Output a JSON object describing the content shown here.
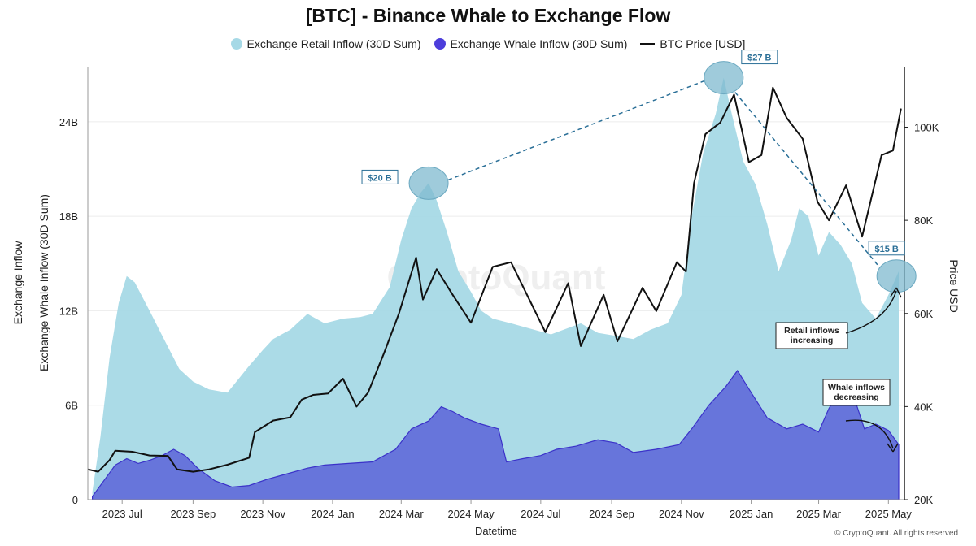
{
  "chart_data": {
    "type": "area",
    "title": "[BTC] - Binance Whale to Exchange Flow",
    "xlabel": "Datetime",
    "ylabel_left": [
      "Exchange Inflow",
      "Exchange Whale Inflow (30D Sum)"
    ],
    "ylabel_right": "Price USD",
    "x_ticks": [
      "2023 Jul",
      "2023 Sep",
      "2023 Nov",
      "2024 Jan",
      "2024 Mar",
      "2024 May",
      "2024 Jul",
      "2024 Sep",
      "2024 Nov",
      "2025 Jan",
      "2025 Mar",
      "2025 May"
    ],
    "y_left_ticks": [
      "0",
      "6B",
      "12B",
      "18B",
      "24B"
    ],
    "y_left_range_billions": [
      0,
      27.5
    ],
    "y_right_ticks": [
      "20K",
      "40K",
      "60K",
      "80K",
      "100K"
    ],
    "y_right_range": [
      20000,
      113000
    ],
    "grid": "horizontal",
    "legend_position": "top-center",
    "x_time_range": [
      "2023-06-01",
      "2025-05-15"
    ],
    "series": [
      {
        "name": "Exchange Retail Inflow (30D Sum)",
        "style": "area",
        "axis": "left",
        "color": "#a6d9e6",
        "unit": "billion",
        "points": [
          [
            "2023-06-05",
            0.5
          ],
          [
            "2023-06-12",
            4
          ],
          [
            "2023-06-20",
            9
          ],
          [
            "2023-06-28",
            12.5
          ],
          [
            "2023-07-05",
            14.2
          ],
          [
            "2023-07-12",
            13.8
          ],
          [
            "2023-07-25",
            12
          ],
          [
            "2023-08-08",
            10
          ],
          [
            "2023-08-20",
            8.3
          ],
          [
            "2023-09-01",
            7.5
          ],
          [
            "2023-09-15",
            7.0
          ],
          [
            "2023-10-01",
            6.8
          ],
          [
            "2023-10-10",
            7.6
          ],
          [
            "2023-10-20",
            8.5
          ],
          [
            "2023-11-01",
            9.5
          ],
          [
            "2023-11-10",
            10.2
          ],
          [
            "2023-11-25",
            10.8
          ],
          [
            "2023-12-10",
            11.8
          ],
          [
            "2023-12-25",
            11.2
          ],
          [
            "2024-01-10",
            11.5
          ],
          [
            "2024-01-25",
            11.6
          ],
          [
            "2024-02-05",
            11.8
          ],
          [
            "2024-02-20",
            13.5
          ],
          [
            "2024-03-01",
            16.5
          ],
          [
            "2024-03-10",
            18.5
          ],
          [
            "2024-03-18",
            19.5
          ],
          [
            "2024-03-25",
            20.1
          ],
          [
            "2024-04-01",
            19.0
          ],
          [
            "2024-04-10",
            17.0
          ],
          [
            "2024-04-20",
            14.5
          ],
          [
            "2024-05-01",
            13.2
          ],
          [
            "2024-05-10",
            12.0
          ],
          [
            "2024-05-20",
            11.5
          ],
          [
            "2024-06-05",
            11.2
          ],
          [
            "2024-06-20",
            10.9
          ],
          [
            "2024-07-10",
            10.5
          ],
          [
            "2024-08-05",
            11.2
          ],
          [
            "2024-08-20",
            10.6
          ],
          [
            "2024-09-05",
            10.4
          ],
          [
            "2024-09-20",
            10.2
          ],
          [
            "2024-10-05",
            10.8
          ],
          [
            "2024-10-20",
            11.2
          ],
          [
            "2024-11-01",
            13
          ],
          [
            "2024-11-10",
            18
          ],
          [
            "2024-11-20",
            22
          ],
          [
            "2024-12-01",
            24.5
          ],
          [
            "2024-12-08",
            26.8
          ],
          [
            "2024-12-15",
            24.5
          ],
          [
            "2024-12-25",
            21.5
          ],
          [
            "2025-01-05",
            20
          ],
          [
            "2025-01-15",
            17.5
          ],
          [
            "2025-01-25",
            14.5
          ],
          [
            "2025-02-05",
            16.5
          ],
          [
            "2025-02-12",
            18.5
          ],
          [
            "2025-02-20",
            18.0
          ],
          [
            "2025-03-01",
            15.5
          ],
          [
            "2025-03-10",
            17.0
          ],
          [
            "2025-03-20",
            16.2
          ],
          [
            "2025-03-30",
            15.0
          ],
          [
            "2025-04-08",
            12.5
          ],
          [
            "2025-04-20",
            11.5
          ],
          [
            "2025-05-01",
            13.0
          ],
          [
            "2025-05-10",
            14.5
          ]
        ]
      },
      {
        "name": "Exchange Whale Inflow (30D Sum)",
        "style": "area",
        "axis": "left",
        "color": "#5a63d8",
        "unit": "billion",
        "points": [
          [
            "2023-06-05",
            0.2
          ],
          [
            "2023-06-15",
            1.2
          ],
          [
            "2023-06-25",
            2.2
          ],
          [
            "2023-07-05",
            2.6
          ],
          [
            "2023-07-15",
            2.3
          ],
          [
            "2023-07-25",
            2.5
          ],
          [
            "2023-08-05",
            2.8
          ],
          [
            "2023-08-15",
            3.2
          ],
          [
            "2023-08-25",
            2.8
          ],
          [
            "2023-09-05",
            2.0
          ],
          [
            "2023-09-20",
            1.2
          ],
          [
            "2023-10-05",
            0.8
          ],
          [
            "2023-10-20",
            0.9
          ],
          [
            "2023-11-05",
            1.3
          ],
          [
            "2023-11-20",
            1.6
          ],
          [
            "2023-12-10",
            2.0
          ],
          [
            "2023-12-25",
            2.2
          ],
          [
            "2024-01-15",
            2.3
          ],
          [
            "2024-02-05",
            2.4
          ],
          [
            "2024-02-25",
            3.2
          ],
          [
            "2024-03-10",
            4.5
          ],
          [
            "2024-03-25",
            5.0
          ],
          [
            "2024-04-05",
            5.9
          ],
          [
            "2024-04-15",
            5.6
          ],
          [
            "2024-04-25",
            5.2
          ],
          [
            "2024-05-10",
            4.8
          ],
          [
            "2024-05-25",
            4.5
          ],
          [
            "2024-06-01",
            2.4
          ],
          [
            "2024-06-15",
            2.6
          ],
          [
            "2024-07-01",
            2.8
          ],
          [
            "2024-07-15",
            3.2
          ],
          [
            "2024-08-01",
            3.4
          ],
          [
            "2024-08-20",
            3.8
          ],
          [
            "2024-09-05",
            3.6
          ],
          [
            "2024-09-20",
            3.0
          ],
          [
            "2024-10-10",
            3.2
          ],
          [
            "2024-10-30",
            3.5
          ],
          [
            "2024-11-10",
            4.5
          ],
          [
            "2024-11-25",
            6.0
          ],
          [
            "2024-12-10",
            7.2
          ],
          [
            "2024-12-20",
            8.2
          ],
          [
            "2025-01-01",
            6.8
          ],
          [
            "2025-01-15",
            5.2
          ],
          [
            "2025-02-01",
            4.5
          ],
          [
            "2025-02-15",
            4.8
          ],
          [
            "2025-03-01",
            4.3
          ],
          [
            "2025-03-10",
            5.8
          ],
          [
            "2025-03-20",
            7.0
          ],
          [
            "2025-04-01",
            6.5
          ],
          [
            "2025-04-10",
            4.5
          ],
          [
            "2025-04-20",
            4.8
          ],
          [
            "2025-05-01",
            4.4
          ],
          [
            "2025-05-10",
            3.5
          ]
        ]
      },
      {
        "name": "BTC Price [USD]",
        "style": "line",
        "axis": "right",
        "color": "#111111",
        "points": [
          [
            "2023-06-01",
            26500
          ],
          [
            "2023-06-10",
            26000
          ],
          [
            "2023-06-20",
            28500
          ],
          [
            "2023-06-25",
            30500
          ],
          [
            "2023-07-10",
            30300
          ],
          [
            "2023-07-25",
            29500
          ],
          [
            "2023-08-10",
            29400
          ],
          [
            "2023-08-18",
            26500
          ],
          [
            "2023-09-01",
            26000
          ],
          [
            "2023-09-15",
            26500
          ],
          [
            "2023-10-01",
            27500
          ],
          [
            "2023-10-20",
            29000
          ],
          [
            "2023-10-25",
            34500
          ],
          [
            "2023-11-10",
            37000
          ],
          [
            "2023-11-25",
            37700
          ],
          [
            "2023-12-05",
            41500
          ],
          [
            "2023-12-15",
            42500
          ],
          [
            "2023-12-28",
            42800
          ],
          [
            "2024-01-10",
            46000
          ],
          [
            "2024-01-22",
            40000
          ],
          [
            "2024-02-01",
            43000
          ],
          [
            "2024-02-15",
            51500
          ],
          [
            "2024-02-28",
            60000
          ],
          [
            "2024-03-14",
            72000
          ],
          [
            "2024-03-20",
            63000
          ],
          [
            "2024-04-01",
            69500
          ],
          [
            "2024-04-15",
            64000
          ],
          [
            "2024-05-01",
            58000
          ],
          [
            "2024-05-20",
            70000
          ],
          [
            "2024-06-05",
            71000
          ],
          [
            "2024-06-25",
            61000
          ],
          [
            "2024-07-05",
            56000
          ],
          [
            "2024-07-25",
            66500
          ],
          [
            "2024-08-05",
            53000
          ],
          [
            "2024-08-25",
            64000
          ],
          [
            "2024-09-06",
            54000
          ],
          [
            "2024-09-28",
            65500
          ],
          [
            "2024-10-10",
            60500
          ],
          [
            "2024-10-28",
            71000
          ],
          [
            "2024-11-05",
            69000
          ],
          [
            "2024-11-12",
            88000
          ],
          [
            "2024-11-22",
            98500
          ],
          [
            "2024-12-05",
            101000
          ],
          [
            "2024-12-17",
            107000
          ],
          [
            "2024-12-30",
            92500
          ],
          [
            "2025-01-10",
            94000
          ],
          [
            "2025-01-20",
            108500
          ],
          [
            "2025-02-01",
            102000
          ],
          [
            "2025-02-15",
            97500
          ],
          [
            "2025-02-28",
            84000
          ],
          [
            "2025-03-10",
            80000
          ],
          [
            "2025-03-25",
            87500
          ],
          [
            "2025-04-08",
            76500
          ],
          [
            "2025-04-25",
            94000
          ],
          [
            "2025-05-05",
            95000
          ],
          [
            "2025-05-12",
            104000
          ]
        ]
      }
    ],
    "annotations": [
      {
        "label": "$20 B",
        "date": "2024-03-25",
        "value": 20.1
      },
      {
        "label": "$27 B",
        "date": "2024-12-08",
        "value": 26.8
      },
      {
        "label": "$15 B",
        "date": "2025-05-08",
        "value": 14.2
      }
    ],
    "notes": [
      {
        "lines": [
          "Retail inflows",
          "increasing"
        ]
      },
      {
        "lines": [
          "Whale inflows",
          "decreasing"
        ]
      }
    ],
    "watermark": "CryptoQuant"
  },
  "legend": {
    "retail": "Exchange Retail Inflow (30D Sum)",
    "whale": "Exchange Whale Inflow (30D Sum)",
    "price": "BTC Price [USD]"
  },
  "colors": {
    "retail": "#a6d9e6",
    "whale": "#5a63d8",
    "price": "#111111",
    "annotation": "#2a6f97"
  },
  "footer": "© CryptoQuant. All rights reserved"
}
